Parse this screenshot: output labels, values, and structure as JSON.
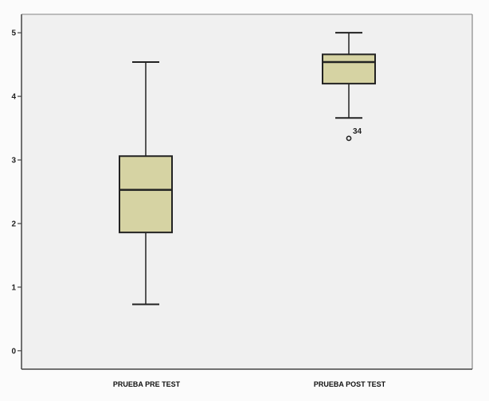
{
  "chart_data": {
    "type": "boxplot",
    "title": "",
    "xlabel": "",
    "ylabel": "",
    "ylim": [
      -0.29,
      5.29
    ],
    "yticks": [
      "0",
      "1",
      "2",
      "3",
      "4",
      "5"
    ],
    "grid": false,
    "categories": [
      "PRUEBA PRE TEST",
      "PRUEBA POST TEST"
    ],
    "boxes": [
      {
        "min": 0.73,
        "q1": 1.86,
        "median": 2.53,
        "q3": 3.06,
        "max": 4.54,
        "outliers": []
      },
      {
        "min": 3.66,
        "q1": 4.2,
        "median": 4.54,
        "q3": 4.66,
        "max": 5.0,
        "outliers": [
          {
            "value": 3.34,
            "label": "34"
          }
        ]
      }
    ],
    "colors": {
      "box_fill": "#d6d3a3",
      "plot_bg": "#f0f0f0",
      "line": "#222222"
    }
  }
}
